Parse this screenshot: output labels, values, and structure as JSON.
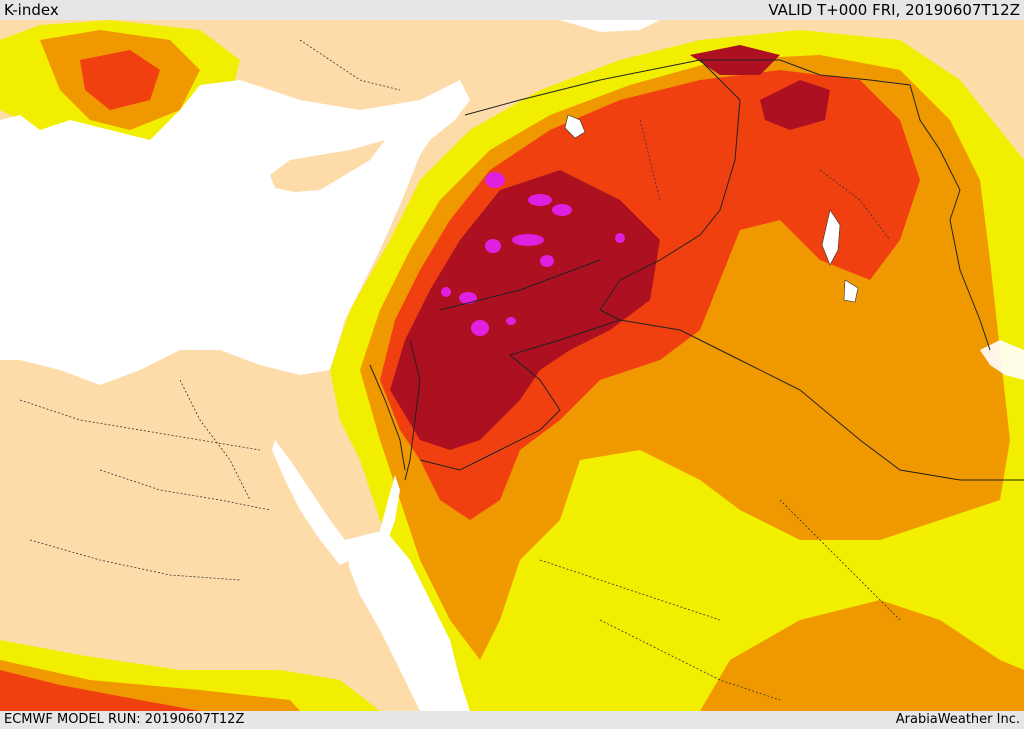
{
  "header": {
    "title": "K-index",
    "valid": "VALID T+000 FRI, 20190607T12Z"
  },
  "footer": {
    "model_run": "ECMWF MODEL RUN: 20190607T12Z",
    "credit": "ArabiaWeather Inc."
  },
  "colors": {
    "sea": "#ffffff",
    "land": "#fddcaa",
    "k_low": "#f2ee00",
    "k_mid": "#f09800",
    "k_high": "#f04010",
    "k_very_high": "#ad1020",
    "k_extreme": "#e020e0",
    "border": "#222222"
  }
}
